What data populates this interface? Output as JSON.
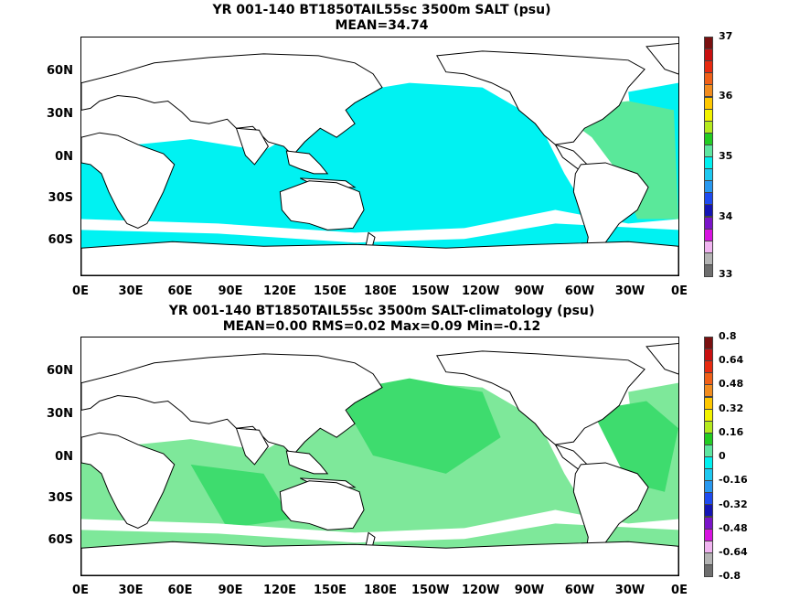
{
  "panels": [
    {
      "title_line1": "YR 001-140 BT1850TAIL55sc 3500m SALT (psu)",
      "title_line2": "MEAN=34.74",
      "colorbar_labels": [
        "37",
        "36",
        "35",
        "34",
        "33"
      ],
      "colorbar_colors": [
        "#7a1010",
        "#c81010",
        "#e82a10",
        "#f06018",
        "#f28c1e",
        "#ffc800",
        "#f2f200",
        "#b4ea1e",
        "#22cc22",
        "#5ee6a0",
        "#00f0f0",
        "#1ec8f0",
        "#2898f0",
        "#1e4bf0",
        "#1414b4",
        "#7a14c8",
        "#d814e0",
        "#f0b4f0",
        "#b4b4b4",
        "#6e6e6e"
      ],
      "ocean_color": "#00f2f2",
      "highlight_color": "#5ae89a"
    },
    {
      "title_line1": "YR 001-140 BT1850TAIL55sc 3500m SALT-climatology (psu)",
      "title_line2": "MEAN=0.00   RMS=0.02   Max=0.09   Min=-0.12",
      "colorbar_labels": [
        "0.8",
        "0.64",
        "0.48",
        "0.32",
        "0.16",
        "0",
        "-0.16",
        "-0.32",
        "-0.48",
        "-0.64",
        "-0.8"
      ],
      "colorbar_colors": [
        "#7a1010",
        "#c81010",
        "#e82a10",
        "#f06018",
        "#f28c1e",
        "#ffc800",
        "#f2f200",
        "#b4ea1e",
        "#22cc22",
        "#5ee6a0",
        "#00f0f0",
        "#1ec8f0",
        "#2898f0",
        "#1e4bf0",
        "#1414b4",
        "#7a14c8",
        "#d814e0",
        "#f0b4f0",
        "#b4b4b4",
        "#6e6e6e"
      ],
      "ocean_color": "#7ee89a",
      "highlight_color": "#3edc6e"
    }
  ],
  "lat_labels": [
    "60N",
    "30N",
    "0N",
    "30S",
    "60S"
  ],
  "lon_labels": [
    "0E",
    "30E",
    "60E",
    "90E",
    "120E",
    "150E",
    "180E",
    "150W",
    "120W",
    "90W",
    "60W",
    "30W",
    "0E"
  ]
}
